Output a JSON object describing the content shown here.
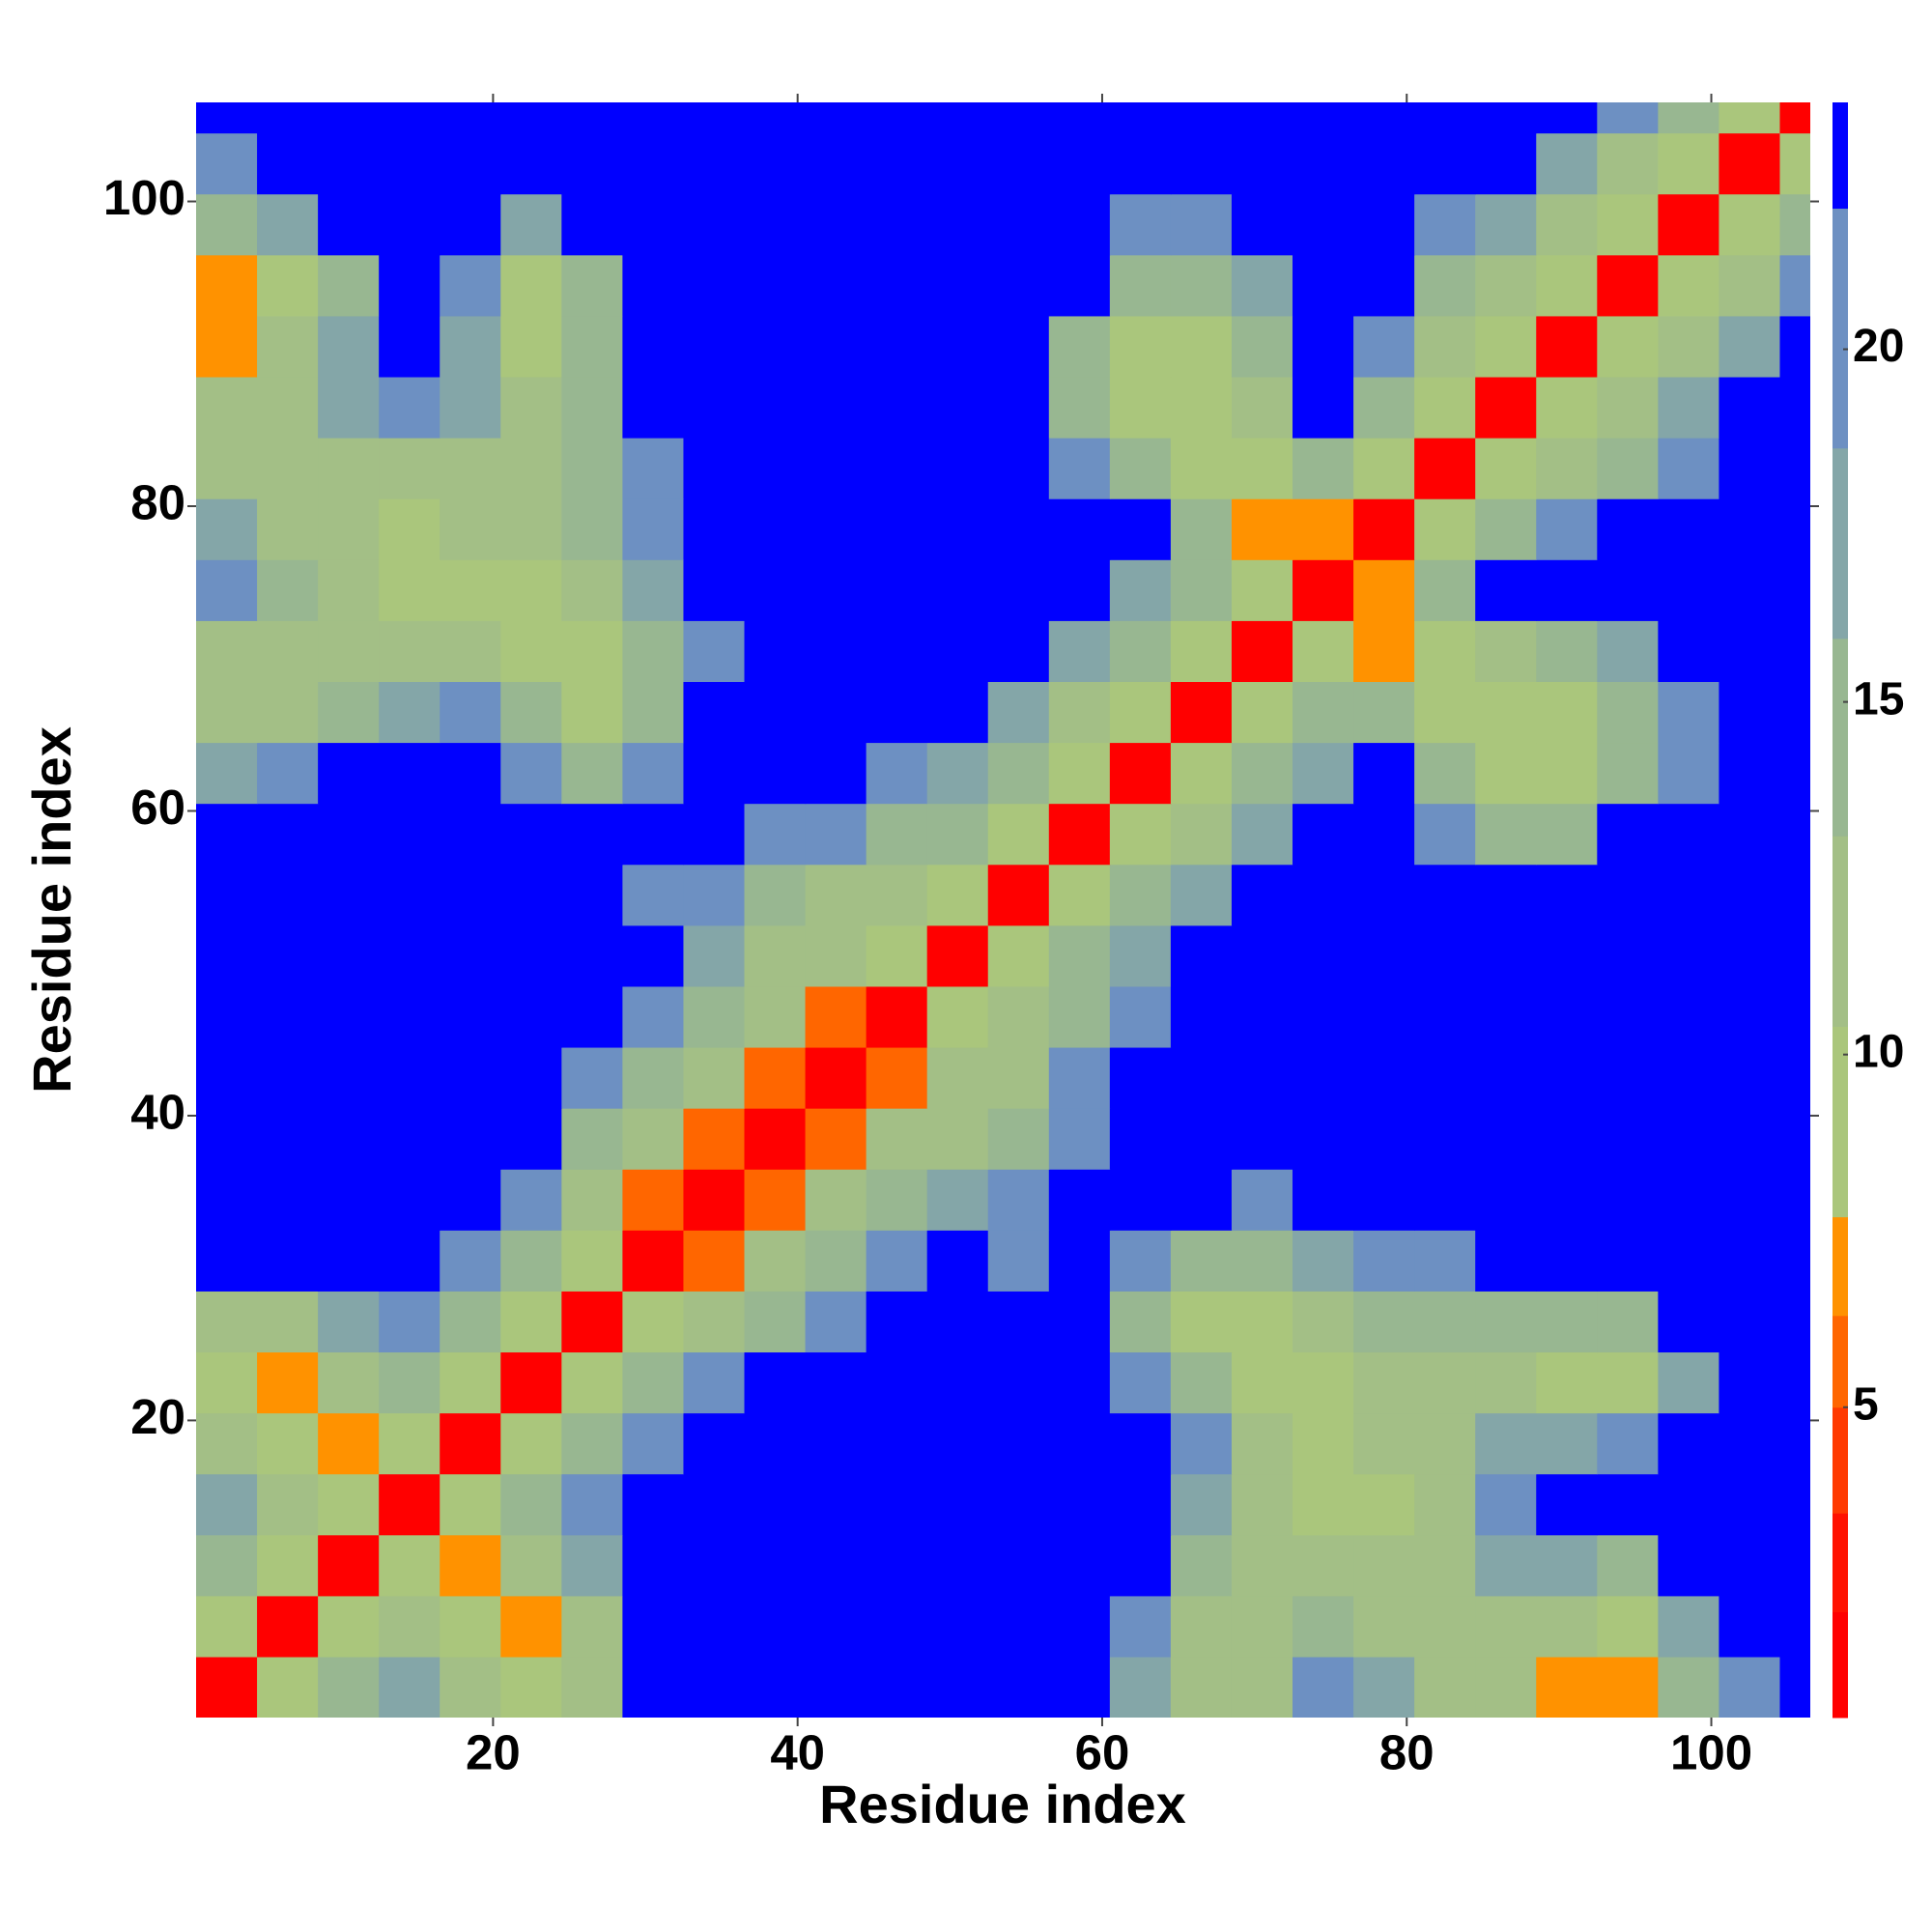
{
  "chart_data": {
    "type": "heatmap",
    "xlabel": "Residue index",
    "ylabel": "Residue index",
    "xlim": [
      0.5,
      106.5
    ],
    "ylim": [
      0.5,
      106.5
    ],
    "xticks": [
      20,
      40,
      60,
      80,
      100
    ],
    "yticks": [
      20,
      40,
      60,
      80,
      100
    ],
    "x": [
      2.5,
      6.5,
      10.5,
      14.5,
      18.5,
      22.5,
      26.5,
      30.5,
      34.5,
      38.5,
      42.5,
      46.5,
      50.5,
      54.5,
      58.5,
      62.5,
      66.5,
      70.5,
      74.5,
      78.5,
      82.5,
      86.5,
      90.5,
      94.5,
      98.5,
      102.5,
      106.5
    ],
    "y": [
      2.5,
      6.5,
      10.5,
      14.5,
      18.5,
      22.5,
      26.5,
      30.5,
      34.5,
      38.5,
      42.5,
      46.5,
      50.5,
      54.5,
      58.5,
      62.5,
      66.5,
      70.5,
      74.5,
      78.5,
      82.5,
      86.5,
      90.5,
      94.5,
      98.5,
      102.5,
      106.5
    ],
    "z": [
      [
        2,
        9,
        15,
        17,
        12,
        8,
        11,
        24,
        24,
        24,
        24,
        24,
        24,
        24,
        24,
        16,
        13,
        12,
        20,
        18,
        13,
        11,
        7,
        7,
        15,
        20,
        24
      ],
      [
        9,
        2,
        9,
        12,
        8,
        7,
        12,
        24,
        24,
        24,
        24,
        24,
        24,
        24,
        24,
        20,
        13,
        12,
        14,
        13,
        12,
        12,
        12,
        8,
        17,
        24,
        24
      ],
      [
        15,
        9,
        2,
        9,
        7,
        12,
        17,
        24,
        24,
        24,
        24,
        24,
        24,
        24,
        24,
        24,
        15,
        13,
        12,
        12,
        13,
        17,
        17,
        15,
        22,
        24,
        24
      ],
      [
        17,
        12,
        9,
        2,
        9,
        15,
        20,
        24,
        24,
        24,
        24,
        24,
        24,
        24,
        24,
        24,
        18,
        12,
        10,
        9,
        12,
        20,
        24,
        24,
        24,
        24,
        24
      ],
      [
        12,
        8,
        7,
        9,
        2,
        9,
        15,
        20,
        24,
        24,
        24,
        24,
        24,
        24,
        24,
        24,
        20,
        11,
        10,
        12,
        12,
        16,
        18,
        20,
        24,
        24,
        24
      ],
      [
        8,
        7,
        12,
        15,
        9,
        2,
        9,
        15,
        20,
        24,
        24,
        24,
        24,
        24,
        24,
        19,
        14,
        8,
        9,
        11,
        12,
        12,
        10,
        10,
        17,
        24,
        24
      ],
      [
        11,
        12,
        17,
        20,
        15,
        9,
        2,
        9,
        11,
        15,
        19,
        22,
        24,
        22,
        24,
        15,
        9,
        8,
        12,
        14,
        15,
        14,
        14,
        15,
        24,
        24,
        24
      ],
      [
        24,
        24,
        24,
        24,
        20,
        15,
        9,
        2,
        6,
        11,
        15,
        19,
        22,
        21,
        24,
        20,
        15,
        15,
        16,
        21,
        20,
        22,
        24,
        24,
        24,
        24,
        24
      ],
      [
        24,
        24,
        24,
        24,
        24,
        20,
        11,
        6,
        2,
        6,
        11,
        15,
        17,
        19,
        24,
        24,
        22,
        21,
        24,
        24,
        24,
        24,
        24,
        24,
        24,
        24,
        24
      ],
      [
        24,
        24,
        24,
        24,
        24,
        24,
        15,
        11,
        6,
        2,
        6,
        11,
        13,
        15,
        19,
        24,
        24,
        24,
        24,
        24,
        24,
        24,
        24,
        24,
        24,
        24,
        24
      ],
      [
        24,
        24,
        24,
        24,
        24,
        24,
        19,
        15,
        11,
        6,
        2,
        6,
        11,
        13,
        20,
        24,
        24,
        24,
        24,
        24,
        24,
        24,
        24,
        24,
        24,
        24,
        24
      ],
      [
        24,
        24,
        24,
        24,
        24,
        24,
        22,
        19,
        15,
        11,
        6,
        2,
        9,
        12,
        15,
        20,
        24,
        24,
        24,
        24,
        24,
        24,
        24,
        24,
        24,
        24,
        24
      ],
      [
        24,
        24,
        24,
        24,
        24,
        24,
        24,
        22,
        17,
        13,
        11,
        9,
        2,
        9,
        14,
        18,
        22,
        24,
        24,
        24,
        24,
        24,
        24,
        24,
        24,
        24,
        24
      ],
      [
        24,
        24,
        24,
        24,
        24,
        24,
        22,
        21,
        19,
        15,
        13,
        12,
        9,
        2,
        9,
        14,
        18,
        22,
        24,
        24,
        24,
        24,
        24,
        24,
        24,
        24,
        24
      ],
      [
        24,
        24,
        24,
        24,
        24,
        24,
        24,
        24,
        24,
        19,
        20,
        15,
        14,
        9,
        2,
        9,
        13,
        17,
        22,
        24,
        20,
        14,
        14,
        24,
        24,
        24,
        24
      ],
      [
        16,
        20,
        24,
        24,
        24,
        19,
        15,
        20,
        24,
        24,
        24,
        20,
        18,
        14,
        9,
        2,
        9,
        14,
        18,
        22,
        15,
        8,
        8,
        15,
        20,
        24,
        24
      ],
      [
        13,
        13,
        15,
        18,
        20,
        14,
        9,
        15,
        22,
        24,
        24,
        24,
        22,
        18,
        13,
        9,
        2,
        9,
        14,
        15,
        8,
        8,
        10,
        14,
        20,
        24,
        24
      ],
      [
        12,
        12,
        13,
        12,
        11,
        8,
        8,
        15,
        21,
        24,
        24,
        24,
        24,
        22,
        17,
        14,
        9,
        2,
        9,
        7,
        8,
        12,
        14,
        17,
        24,
        24,
        24
      ],
      [
        20,
        14,
        12,
        10,
        10,
        9,
        12,
        16,
        24,
        24,
        24,
        24,
        24,
        24,
        22,
        18,
        14,
        9,
        2,
        7,
        15,
        22,
        24,
        24,
        24,
        24,
        24
      ],
      [
        18,
        13,
        12,
        9,
        12,
        11,
        14,
        21,
        24,
        24,
        24,
        24,
        24,
        24,
        24,
        22,
        15,
        7,
        7,
        2,
        9,
        15,
        20,
        24,
        24,
        24,
        24
      ],
      [
        13,
        12,
        13,
        12,
        12,
        12,
        15,
        20,
        24,
        24,
        24,
        24,
        24,
        24,
        20,
        15,
        8,
        8,
        15,
        9,
        2,
        9,
        13,
        15,
        20,
        24,
        24
      ],
      [
        11,
        12,
        17,
        20,
        16,
        12,
        14,
        22,
        24,
        24,
        24,
        24,
        24,
        24,
        14,
        8,
        8,
        12,
        22,
        15,
        9,
        2,
        9,
        12,
        16,
        22,
        24
      ],
      [
        7,
        12,
        17,
        24,
        18,
        10,
        14,
        24,
        24,
        24,
        24,
        24,
        24,
        24,
        14,
        8,
        10,
        14,
        24,
        20,
        13,
        9,
        2,
        9,
        12,
        18,
        24
      ],
      [
        7,
        8,
        15,
        24,
        20,
        10,
        15,
        24,
        24,
        24,
        24,
        24,
        24,
        24,
        24,
        15,
        14,
        17,
        24,
        24,
        15,
        12,
        9,
        2,
        9,
        13,
        20
      ],
      [
        15,
        17,
        22,
        24,
        24,
        17,
        24,
        24,
        24,
        24,
        24,
        24,
        24,
        24,
        24,
        20,
        20,
        24,
        24,
        24,
        20,
        16,
        12,
        9,
        2,
        9,
        14
      ],
      [
        20,
        24,
        24,
        24,
        24,
        24,
        24,
        24,
        24,
        24,
        24,
        24,
        24,
        24,
        24,
        24,
        24,
        24,
        24,
        24,
        24,
        22,
        18,
        13,
        9,
        2,
        9
      ],
      [
        24,
        24,
        24,
        24,
        24,
        24,
        24,
        24,
        24,
        24,
        24,
        24,
        24,
        24,
        24,
        24,
        24,
        24,
        24,
        24,
        24,
        24,
        24,
        20,
        14,
        9,
        2
      ]
    ],
    "colorbar": {
      "levels": [
        0.6,
        2.1,
        3.5,
        5.0,
        6.3,
        7.7,
        10.4,
        13.1,
        15.9,
        18.6,
        22.0,
        23.5
      ],
      "colors": [
        "#ff0000",
        "#ff1200",
        "#ff3a00",
        "#ff6600",
        "#ff9200",
        "#aac67c",
        "#a3bf86",
        "#98b791",
        "#84a6a8",
        "#6d90c2",
        "#0000ff"
      ],
      "ticks": [
        5,
        10,
        15,
        20
      ]
    }
  }
}
